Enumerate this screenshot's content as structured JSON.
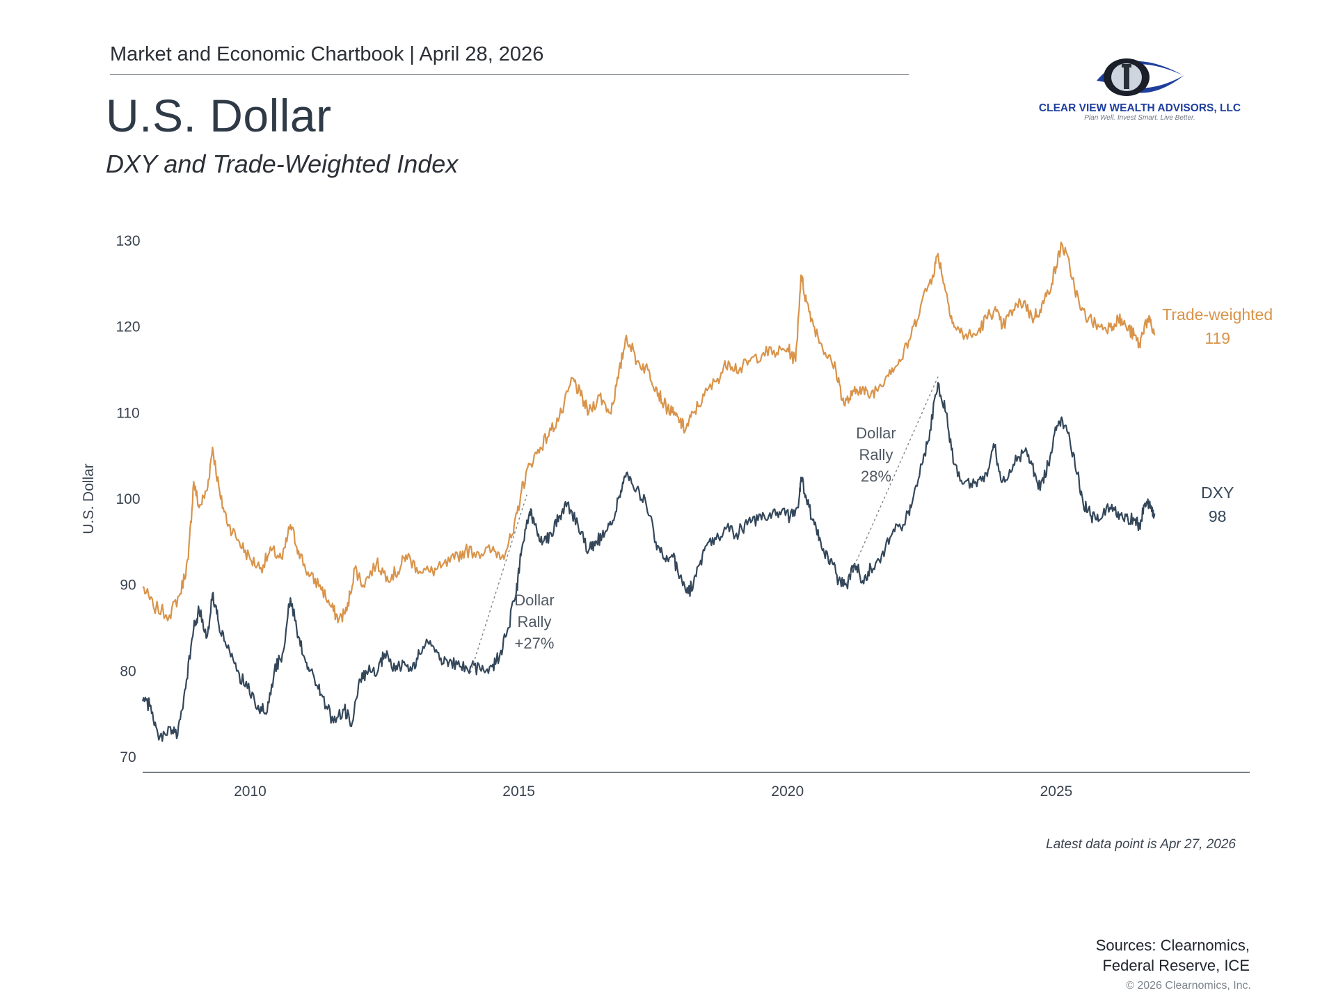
{
  "header": {
    "line": "Market and Economic Chartbook | April 28, 2026",
    "title": "U.S. Dollar",
    "subtitle": "DXY and Trade-Weighted Index"
  },
  "logo": {
    "name": "CLEAR VIEW WEALTH ADVISORS, LLC",
    "tagline": "Plan Well. Invest Smart. Live Better.",
    "icon": "eye-lighthouse-icon",
    "color": "#1f3f9e"
  },
  "footer": {
    "latest": "Latest data point is Apr 27, 2026",
    "sources_line1": "Sources: Clearnomics,",
    "sources_line2": "Federal Reserve, ICE",
    "copyright": "© 2026 Clearnomics, Inc."
  },
  "chart_data": {
    "type": "line",
    "ylabel": "U.S. Dollar",
    "ylim": [
      70,
      130
    ],
    "yticks": [
      70,
      80,
      90,
      100,
      110,
      120,
      130
    ],
    "xlim": [
      2008.0,
      2028.6
    ],
    "xticks": [
      2010,
      2015,
      2020,
      2025
    ],
    "grid": false,
    "series": [
      {
        "name": "Trade-weighted",
        "end_label": "Trade-weighted",
        "end_value_label": "119",
        "color": "#d9944a",
        "points": [
          [
            2008.0,
            89.8
          ],
          [
            2008.2,
            87.5
          ],
          [
            2008.5,
            86.5
          ],
          [
            2008.7,
            89
          ],
          [
            2008.85,
            93
          ],
          [
            2008.95,
            102
          ],
          [
            2009.05,
            99
          ],
          [
            2009.2,
            101
          ],
          [
            2009.3,
            106
          ],
          [
            2009.45,
            100
          ],
          [
            2009.6,
            97
          ],
          [
            2009.8,
            95
          ],
          [
            2010.0,
            93
          ],
          [
            2010.2,
            92
          ],
          [
            2010.4,
            94
          ],
          [
            2010.6,
            93
          ],
          [
            2010.75,
            97
          ],
          [
            2010.9,
            94
          ],
          [
            2011.1,
            91
          ],
          [
            2011.3,
            90
          ],
          [
            2011.5,
            87.5
          ],
          [
            2011.65,
            86
          ],
          [
            2011.8,
            87
          ],
          [
            2011.95,
            92
          ],
          [
            2012.1,
            90
          ],
          [
            2012.35,
            92.5
          ],
          [
            2012.55,
            91
          ],
          [
            2012.75,
            91.5
          ],
          [
            2012.9,
            93.5
          ],
          [
            2013.1,
            92
          ],
          [
            2013.35,
            91.5
          ],
          [
            2013.55,
            92
          ],
          [
            2013.8,
            93
          ],
          [
            2014.0,
            94
          ],
          [
            2014.25,
            93.8
          ],
          [
            2014.5,
            94
          ],
          [
            2014.7,
            93.5
          ],
          [
            2014.9,
            96
          ],
          [
            2015.05,
            101
          ],
          [
            2015.2,
            104
          ],
          [
            2015.4,
            106
          ],
          [
            2015.6,
            108
          ],
          [
            2015.8,
            110
          ],
          [
            2016.0,
            114
          ],
          [
            2016.15,
            112
          ],
          [
            2016.3,
            110
          ],
          [
            2016.5,
            112
          ],
          [
            2016.7,
            110
          ],
          [
            2016.85,
            114
          ],
          [
            2017.0,
            119
          ],
          [
            2017.2,
            116
          ],
          [
            2017.4,
            115
          ],
          [
            2017.55,
            113
          ],
          [
            2017.7,
            111
          ],
          [
            2017.85,
            110
          ],
          [
            2018.0,
            109
          ],
          [
            2018.1,
            108
          ],
          [
            2018.25,
            110
          ],
          [
            2018.45,
            112
          ],
          [
            2018.7,
            114
          ],
          [
            2018.9,
            116
          ],
          [
            2019.1,
            115
          ],
          [
            2019.3,
            116
          ],
          [
            2019.55,
            117
          ],
          [
            2019.8,
            117
          ],
          [
            2020.0,
            117.5
          ],
          [
            2020.15,
            116
          ],
          [
            2020.25,
            126
          ],
          [
            2020.35,
            123
          ],
          [
            2020.5,
            120
          ],
          [
            2020.7,
            117
          ],
          [
            2020.9,
            115
          ],
          [
            2021.05,
            111
          ],
          [
            2021.2,
            112
          ],
          [
            2021.35,
            113
          ],
          [
            2021.5,
            112
          ],
          [
            2021.7,
            113
          ],
          [
            2021.9,
            115
          ],
          [
            2022.1,
            116
          ],
          [
            2022.3,
            119
          ],
          [
            2022.5,
            123
          ],
          [
            2022.7,
            126
          ],
          [
            2022.8,
            128.5
          ],
          [
            2022.95,
            124
          ],
          [
            2023.1,
            120
          ],
          [
            2023.3,
            119
          ],
          [
            2023.5,
            119
          ],
          [
            2023.7,
            121
          ],
          [
            2023.85,
            122
          ],
          [
            2024.0,
            120
          ],
          [
            2024.2,
            122
          ],
          [
            2024.4,
            123
          ],
          [
            2024.55,
            121
          ],
          [
            2024.7,
            122
          ],
          [
            2024.85,
            124
          ],
          [
            2025.0,
            127
          ],
          [
            2025.1,
            129.7
          ],
          [
            2025.25,
            127
          ],
          [
            2025.45,
            122
          ],
          [
            2025.6,
            121
          ],
          [
            2025.8,
            120
          ],
          [
            2026.0,
            120
          ],
          [
            2026.15,
            121
          ],
          [
            2026.3,
            120
          ],
          [
            2026.45,
            119
          ],
          [
            2026.55,
            117.8
          ],
          [
            2026.65,
            120.5
          ],
          [
            2026.75,
            120.5
          ],
          [
            2026.83,
            119
          ]
        ]
      },
      {
        "name": "DXY",
        "end_label": "DXY",
        "end_value_label": "98",
        "color": "#34475a",
        "points": [
          [
            2008.0,
            76.5
          ],
          [
            2008.15,
            76
          ],
          [
            2008.3,
            72
          ],
          [
            2008.5,
            73.5
          ],
          [
            2008.65,
            72.5
          ],
          [
            2008.8,
            78
          ],
          [
            2008.95,
            85
          ],
          [
            2009.05,
            87
          ],
          [
            2009.2,
            84
          ],
          [
            2009.3,
            89
          ],
          [
            2009.4,
            86
          ],
          [
            2009.55,
            83
          ],
          [
            2009.75,
            80
          ],
          [
            2009.95,
            78
          ],
          [
            2010.15,
            76
          ],
          [
            2010.3,
            75
          ],
          [
            2010.45,
            80
          ],
          [
            2010.6,
            82
          ],
          [
            2010.75,
            88.5
          ],
          [
            2010.9,
            84
          ],
          [
            2011.05,
            81
          ],
          [
            2011.2,
            79
          ],
          [
            2011.35,
            77
          ],
          [
            2011.55,
            74
          ],
          [
            2011.75,
            75.5
          ],
          [
            2011.9,
            74
          ],
          [
            2012.05,
            79
          ],
          [
            2012.2,
            80
          ],
          [
            2012.35,
            79.5
          ],
          [
            2012.5,
            82
          ],
          [
            2012.7,
            80
          ],
          [
            2012.85,
            81
          ],
          [
            2013.0,
            80
          ],
          [
            2013.15,
            82
          ],
          [
            2013.35,
            83.5
          ],
          [
            2013.55,
            81.5
          ],
          [
            2013.7,
            81
          ],
          [
            2013.9,
            80.5
          ],
          [
            2014.1,
            80.5
          ],
          [
            2014.3,
            80
          ],
          [
            2014.5,
            80.5
          ],
          [
            2014.65,
            82
          ],
          [
            2014.8,
            85
          ],
          [
            2014.95,
            89
          ],
          [
            2015.05,
            94
          ],
          [
            2015.2,
            98.5
          ],
          [
            2015.3,
            97
          ],
          [
            2015.45,
            95
          ],
          [
            2015.6,
            96
          ],
          [
            2015.75,
            98
          ],
          [
            2015.9,
            99.5
          ],
          [
            2016.1,
            97
          ],
          [
            2016.3,
            94
          ],
          [
            2016.45,
            95
          ],
          [
            2016.6,
            96
          ],
          [
            2016.75,
            97.5
          ],
          [
            2016.9,
            101
          ],
          [
            2017.0,
            103
          ],
          [
            2017.15,
            101
          ],
          [
            2017.35,
            100
          ],
          [
            2017.55,
            95
          ],
          [
            2017.7,
            93
          ],
          [
            2017.85,
            93.5
          ],
          [
            2018.0,
            91
          ],
          [
            2018.15,
            89
          ],
          [
            2018.3,
            91
          ],
          [
            2018.45,
            94
          ],
          [
            2018.65,
            95.5
          ],
          [
            2018.85,
            96.5
          ],
          [
            2019.05,
            96
          ],
          [
            2019.25,
            97
          ],
          [
            2019.45,
            97.5
          ],
          [
            2019.65,
            98
          ],
          [
            2019.85,
            98.5
          ],
          [
            2020.05,
            98
          ],
          [
            2020.2,
            99
          ],
          [
            2020.25,
            102.5
          ],
          [
            2020.35,
            100
          ],
          [
            2020.5,
            97
          ],
          [
            2020.65,
            94
          ],
          [
            2020.8,
            93
          ],
          [
            2020.95,
            90.5
          ],
          [
            2021.1,
            90
          ],
          [
            2021.25,
            92.5
          ],
          [
            2021.4,
            90.5
          ],
          [
            2021.55,
            92
          ],
          [
            2021.75,
            93.5
          ],
          [
            2021.95,
            96
          ],
          [
            2022.15,
            97
          ],
          [
            2022.3,
            99
          ],
          [
            2022.5,
            104
          ],
          [
            2022.65,
            108
          ],
          [
            2022.8,
            113.5
          ],
          [
            2022.95,
            110
          ],
          [
            2023.1,
            104
          ],
          [
            2023.3,
            102
          ],
          [
            2023.5,
            102
          ],
          [
            2023.7,
            103
          ],
          [
            2023.85,
            106
          ],
          [
            2024.0,
            102
          ],
          [
            2024.2,
            104
          ],
          [
            2024.4,
            105.5
          ],
          [
            2024.55,
            104
          ],
          [
            2024.7,
            101
          ],
          [
            2024.85,
            104
          ],
          [
            2025.0,
            108
          ],
          [
            2025.1,
            109.5
          ],
          [
            2025.25,
            107
          ],
          [
            2025.4,
            103
          ],
          [
            2025.5,
            99.5
          ],
          [
            2025.65,
            98
          ],
          [
            2025.8,
            97.5
          ],
          [
            2026.0,
            99
          ],
          [
            2026.15,
            98.5
          ],
          [
            2026.3,
            98
          ],
          [
            2026.45,
            97.5
          ],
          [
            2026.55,
            96.8
          ],
          [
            2026.65,
            99.5
          ],
          [
            2026.75,
            99
          ],
          [
            2026.83,
            98.3
          ]
        ]
      }
    ],
    "annotations": [
      {
        "lines": [
          "Dollar",
          "Rally",
          "+27%"
        ],
        "from": [
          2014.1,
          79.8
        ],
        "to": [
          2015.15,
          100.5
        ]
      },
      {
        "lines": [
          "Dollar",
          "Rally",
          "28%"
        ],
        "from": [
          2021.1,
          90.2
        ],
        "to": [
          2022.8,
          114.2
        ]
      }
    ]
  }
}
